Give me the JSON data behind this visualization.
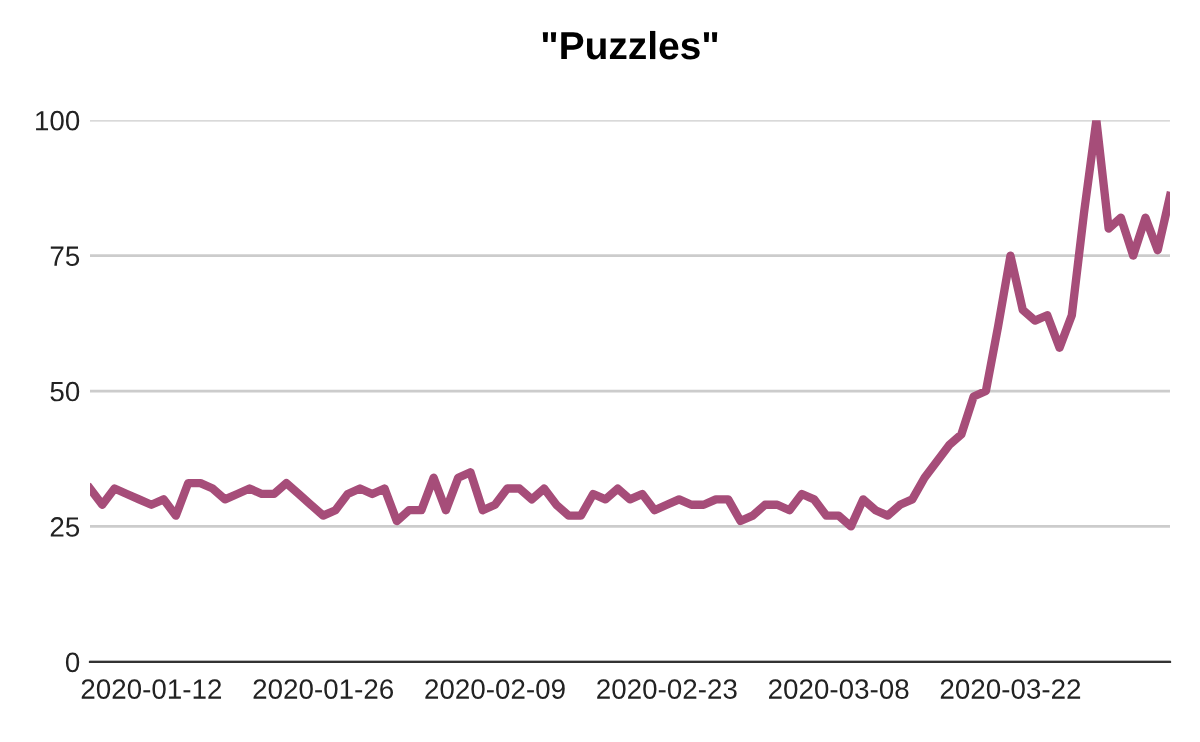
{
  "chart_data": {
    "type": "line",
    "title": "\"Puzzles\"",
    "x": [
      "2020-01-07",
      "2020-01-08",
      "2020-01-09",
      "2020-01-10",
      "2020-01-11",
      "2020-01-12",
      "2020-01-13",
      "2020-01-14",
      "2020-01-15",
      "2020-01-16",
      "2020-01-17",
      "2020-01-18",
      "2020-01-19",
      "2020-01-20",
      "2020-01-21",
      "2020-01-22",
      "2020-01-23",
      "2020-01-24",
      "2020-01-25",
      "2020-01-26",
      "2020-01-27",
      "2020-01-28",
      "2020-01-29",
      "2020-01-30",
      "2020-01-31",
      "2020-02-01",
      "2020-02-02",
      "2020-02-03",
      "2020-02-04",
      "2020-02-05",
      "2020-02-06",
      "2020-02-07",
      "2020-02-08",
      "2020-02-09",
      "2020-02-10",
      "2020-02-11",
      "2020-02-12",
      "2020-02-13",
      "2020-02-14",
      "2020-02-15",
      "2020-02-16",
      "2020-02-17",
      "2020-02-18",
      "2020-02-19",
      "2020-02-20",
      "2020-02-21",
      "2020-02-22",
      "2020-02-23",
      "2020-02-24",
      "2020-02-25",
      "2020-02-26",
      "2020-02-27",
      "2020-02-28",
      "2020-02-29",
      "2020-03-01",
      "2020-03-02",
      "2020-03-03",
      "2020-03-04",
      "2020-03-05",
      "2020-03-06",
      "2020-03-07",
      "2020-03-08",
      "2020-03-09",
      "2020-03-10",
      "2020-03-11",
      "2020-03-12",
      "2020-03-13",
      "2020-03-14",
      "2020-03-15",
      "2020-03-16",
      "2020-03-17",
      "2020-03-18",
      "2020-03-19",
      "2020-03-20",
      "2020-03-21",
      "2020-03-22",
      "2020-03-23",
      "2020-03-24",
      "2020-03-25",
      "2020-03-26",
      "2020-03-27",
      "2020-03-28",
      "2020-03-29",
      "2020-03-30",
      "2020-03-31",
      "2020-04-01",
      "2020-04-02",
      "2020-04-03",
      "2020-04-04"
    ],
    "series": [
      {
        "color": "#a64d79",
        "values": [
          32,
          29,
          32,
          31,
          30,
          29,
          30,
          27,
          33,
          33,
          32,
          30,
          31,
          32,
          31,
          31,
          33,
          31,
          29,
          27,
          28,
          31,
          32,
          31,
          32,
          26,
          28,
          28,
          34,
          28,
          34,
          35,
          28,
          29,
          32,
          32,
          30,
          32,
          29,
          27,
          27,
          31,
          30,
          32,
          30,
          31,
          28,
          29,
          30,
          29,
          29,
          30,
          30,
          26,
          27,
          29,
          29,
          28,
          31,
          30,
          27,
          27,
          25,
          30,
          28,
          27,
          29,
          30,
          34,
          37,
          40,
          42,
          49,
          50,
          62,
          75,
          65,
          63,
          64,
          58,
          64,
          83,
          100,
          80,
          82,
          75,
          82,
          76,
          86
        ]
      }
    ],
    "xlim": [
      "2020-01-07",
      "2020-04-04"
    ],
    "xticks": [
      "2020-01-12",
      "2020-01-26",
      "2020-02-09",
      "2020-02-23",
      "2020-03-08",
      "2020-03-22"
    ],
    "ylim": [
      0,
      100
    ],
    "yticks": [
      0,
      25,
      50,
      75,
      100
    ],
    "grid": "y",
    "legend": false,
    "marker": "none",
    "line_style": "solid"
  }
}
